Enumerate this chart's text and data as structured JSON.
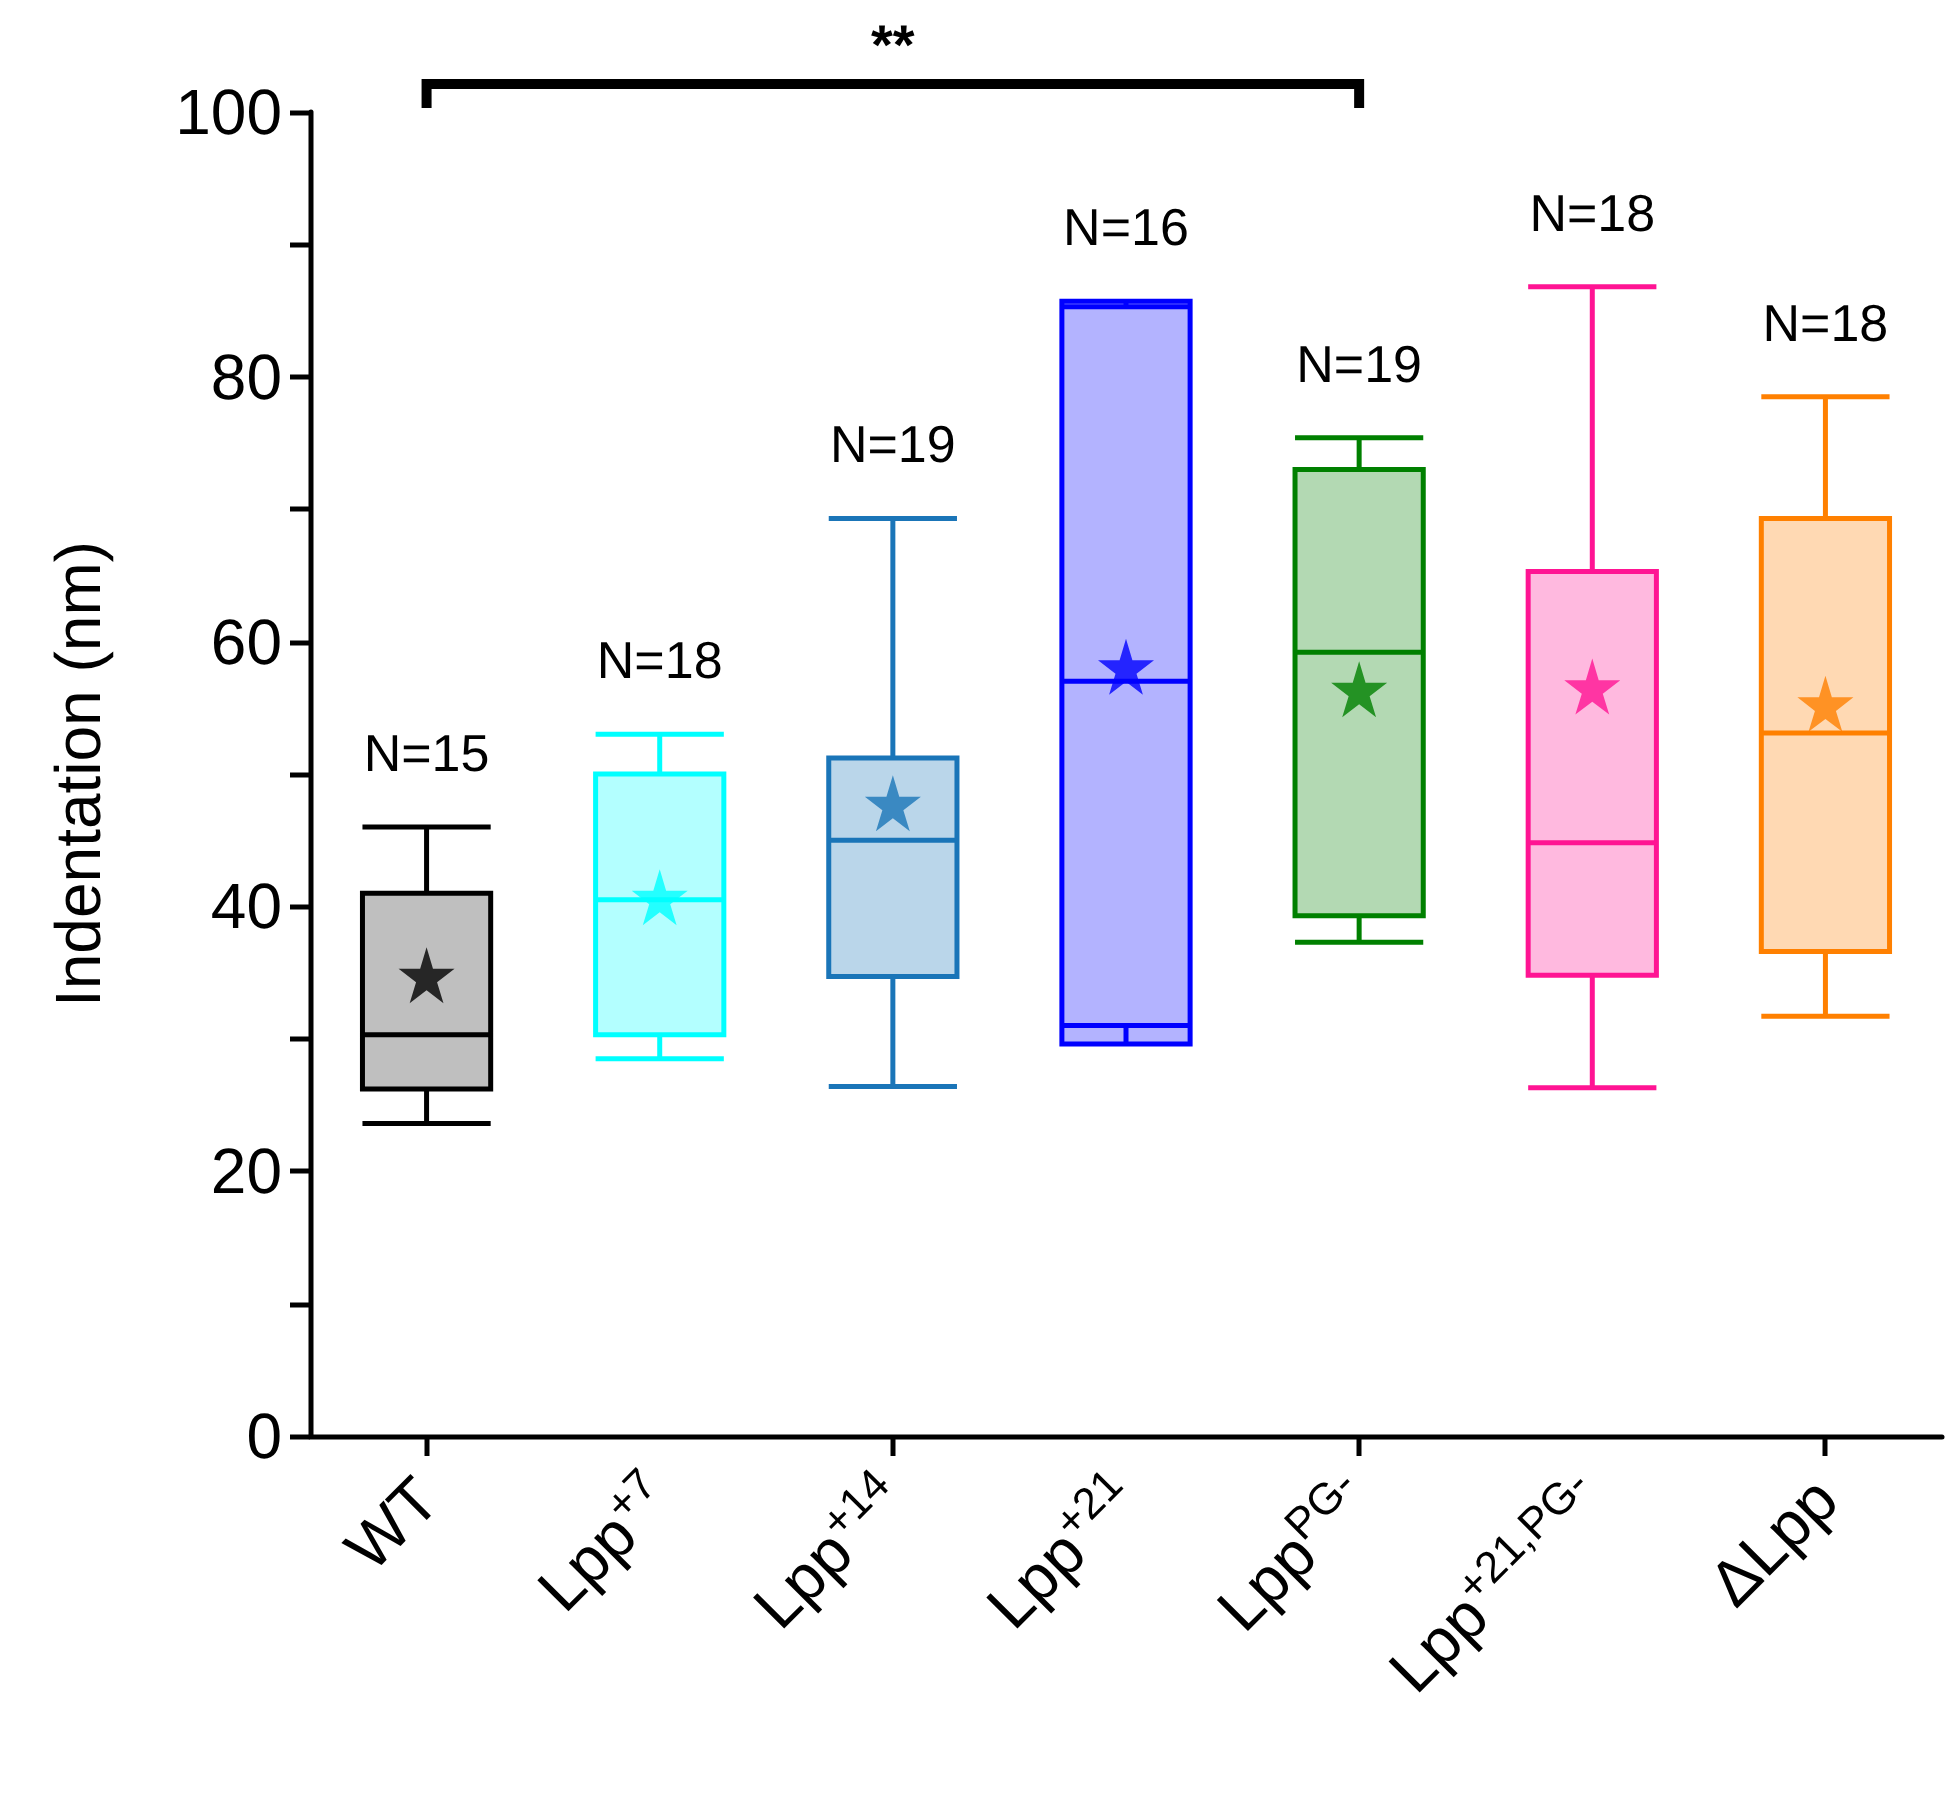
{
  "chart_data": {
    "type": "box",
    "ylabel": "Indentation (nm)",
    "categories": [
      "WT",
      "Lpp$^{+7}$",
      "Lpp$^{+14}$",
      "Lpp$^{+21}$",
      "Lpp$^{PG-}$",
      "Lpp$^{+21,PG-}$",
      "ΔLpp"
    ],
    "colors": [
      "#000000",
      "#00ffff",
      "#1a75b8",
      "#0000ff",
      "#008000",
      "#ff1493",
      "#ff8000"
    ],
    "boxes": [
      {
        "low": 23.6,
        "q1": 26.2,
        "median": 30.3,
        "q3": 41,
        "high": 46,
        "mean": 34.8
      },
      {
        "low": 28.5,
        "q1": 30.3,
        "median": 40.5,
        "q3": 50,
        "high": 53,
        "mean": 40.7
      },
      {
        "low": 26.4,
        "q1": 34.7,
        "median": 45,
        "q3": 51.2,
        "high": 69.3,
        "mean": 47.8
      },
      {
        "low": 31,
        "q1": 29.6,
        "median": 57,
        "q3": 85.7,
        "high": 85.3,
        "mean": 58.1
      },
      {
        "low": 37.3,
        "q1": 39.3,
        "median": 59.2,
        "q3": 73,
        "high": 75.4,
        "mean": 56.4
      },
      {
        "low": 26.3,
        "q1": 34.8,
        "median": 44.8,
        "q3": 65.3,
        "high": 86.8,
        "mean": 56.6
      },
      {
        "low": 31.7,
        "q1": 36.6,
        "median": 53.1,
        "q3": 69.3,
        "high": 78.5,
        "mean": 55.3
      }
    ],
    "marker": "star",
    "ylim": [
      0,
      100
    ],
    "yticks": [
      0,
      {
        "value": 10,
        "label": null
      },
      20,
      {
        "value": 30,
        "label": null
      },
      40,
      {
        "value": 50,
        "label": null
      },
      60,
      {
        "value": 70,
        "label": null
      },
      80,
      {
        "value": 90,
        "label": null
      },
      100
    ],
    "annotations": [
      "N=15",
      "N=18",
      "N=19",
      "N=16",
      "N=19",
      "N=18",
      "N=18",
      "**"
    ]
  }
}
